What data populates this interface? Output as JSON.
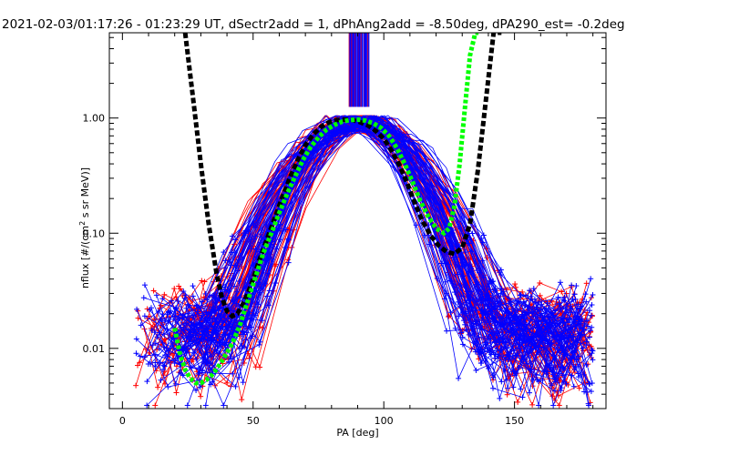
{
  "chart_data": {
    "type": "line",
    "title": "2021-02-03/01:17:26 - 01:23:29 UT, dSectr2add = 1, dPhAng2add = -8.50deg, dPA290_est=  -0.2deg",
    "xlabel": "PA [deg]",
    "ylabel": "nflux [#/(cm^2 s sr MeV)]",
    "xlim": [
      -5,
      185
    ],
    "ylim": [
      0.003,
      5.5
    ],
    "yscale": "log",
    "grid": false,
    "x_ticks": [
      0,
      50,
      100,
      150
    ],
    "y_ticks": [
      0.01,
      0.1,
      1.0
    ],
    "x_tick_labels": [
      "0",
      "50",
      "100",
      "150"
    ],
    "y_tick_labels": [
      "0.01",
      "0.10",
      "1.00"
    ],
    "colors": {
      "red_traces": "#ff0000",
      "blue_traces": "#0000ff",
      "fit_black": "#000000",
      "fit_green": "#00ff00",
      "vertical_band_red": "#c00040",
      "vertical_band_blue": "#0000ff"
    },
    "series": [
      {
        "color": "black",
        "style": "thick-dashed",
        "x": [
          24,
          27,
          30,
          33,
          36,
          38,
          40,
          42,
          44,
          46,
          48,
          50,
          52,
          55,
          58,
          61,
          64,
          67,
          70,
          73,
          76,
          79,
          82,
          85,
          88,
          91,
          94,
          97,
          100,
          103,
          106,
          109,
          112,
          115,
          118,
          121,
          124,
          127,
          130,
          133,
          136,
          139,
          142,
          145
        ],
        "y": [
          5.5,
          1.5,
          0.4,
          0.12,
          0.045,
          0.028,
          0.021,
          0.019,
          0.02,
          0.024,
          0.03,
          0.04,
          0.055,
          0.085,
          0.13,
          0.2,
          0.3,
          0.43,
          0.58,
          0.72,
          0.84,
          0.92,
          0.96,
          0.97,
          0.96,
          0.92,
          0.86,
          0.77,
          0.66,
          0.52,
          0.39,
          0.27,
          0.18,
          0.125,
          0.095,
          0.078,
          0.069,
          0.066,
          0.075,
          0.12,
          0.35,
          1.4,
          5.5,
          5.5
        ]
      },
      {
        "color": "green",
        "style": "thick-dotted",
        "x": [
          20,
          22,
          24,
          26,
          28,
          30,
          32,
          34,
          36,
          38,
          40,
          42,
          45,
          48,
          51,
          54,
          57,
          60,
          63,
          66,
          69,
          72,
          75,
          78,
          81,
          84,
          87,
          90,
          93,
          96,
          99,
          102,
          105,
          108,
          111,
          114,
          117,
          120,
          123,
          125,
          127,
          129,
          131,
          133,
          135,
          137
        ],
        "y": [
          0.015,
          0.009,
          0.0065,
          0.0055,
          0.005,
          0.005,
          0.0053,
          0.0058,
          0.0066,
          0.0077,
          0.0092,
          0.011,
          0.016,
          0.026,
          0.042,
          0.068,
          0.1,
          0.15,
          0.22,
          0.31,
          0.43,
          0.56,
          0.68,
          0.79,
          0.87,
          0.93,
          0.96,
          0.97,
          0.95,
          0.9,
          0.82,
          0.7,
          0.55,
          0.4,
          0.28,
          0.19,
          0.14,
          0.11,
          0.1,
          0.11,
          0.17,
          0.4,
          1.2,
          3.5,
          5.5,
          5.5
        ]
      }
    ]
  }
}
